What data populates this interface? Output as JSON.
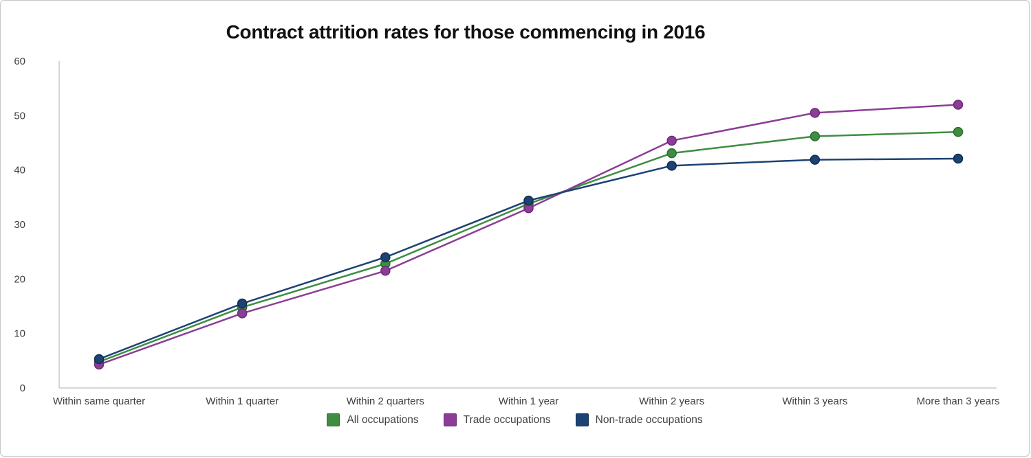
{
  "chart_data": {
    "type": "line",
    "title": "Contract attrition rates for those commencing in 2016",
    "categories": [
      "Within same quarter",
      "Within 1 quarter",
      "Within 2 quarters",
      "Within 1 year",
      "Within 2 years",
      "Within 3 years",
      "More than 3 years"
    ],
    "series": [
      {
        "name": "All occupations",
        "color": "#3e8e41",
        "marker_stroke": "#2f6b31",
        "values": [
          4.8,
          14.8,
          22.8,
          33.8,
          43.1,
          46.2,
          47.0
        ]
      },
      {
        "name": "Trade occupations",
        "color": "#8c3d97",
        "marker_stroke": "#6a2d74",
        "values": [
          4.3,
          13.7,
          21.5,
          33.0,
          45.4,
          50.5,
          52.0
        ]
      },
      {
        "name": "Non-trade occupations",
        "color": "#1c4373",
        "marker_stroke": "#122c4e",
        "values": [
          5.3,
          15.5,
          24.0,
          34.4,
          40.8,
          41.9,
          42.1
        ]
      }
    ],
    "ylim": [
      0,
      60
    ],
    "ytick_step": 10,
    "grid": false,
    "legend_position": "bottom",
    "xlabel": "",
    "ylabel": ""
  },
  "colors": {
    "axis_line": "#c9c9c9",
    "tick_text": "#404040",
    "frame_border": "#c6c6c6"
  }
}
